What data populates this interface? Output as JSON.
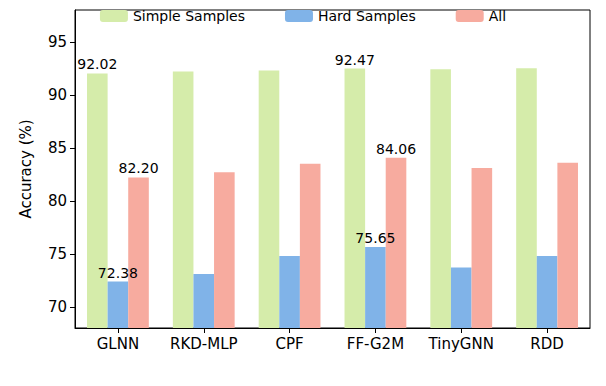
{
  "chart_data": {
    "type": "bar",
    "y_label": "Accuracy (%)",
    "categories": [
      "GLNN",
      "RKD-MLP",
      "CPF",
      "FF-G2M",
      "TinyGNN",
      "RDD"
    ],
    "series": [
      {
        "name": "Simple Samples",
        "color": "#d5ecaa",
        "values": [
          92.02,
          92.2,
          92.3,
          92.47,
          92.4,
          92.5
        ],
        "value_labels": [
          "92.02",
          null,
          null,
          "92.47",
          null,
          null
        ]
      },
      {
        "name": "Hard Samples",
        "color": "#80b3e8",
        "values": [
          72.38,
          73.1,
          74.8,
          75.65,
          73.7,
          74.8
        ],
        "value_labels": [
          "72.38",
          null,
          null,
          "75.65",
          null,
          null
        ]
      },
      {
        "name": "All",
        "color": "#f7ab9f",
        "values": [
          82.2,
          82.7,
          83.5,
          84.06,
          83.1,
          83.6
        ],
        "value_labels": [
          "82.20",
          null,
          null,
          "84.06",
          null,
          null
        ]
      }
    ],
    "ylim": [
      68,
      98
    ],
    "yticks": [
      70,
      75,
      80,
      85,
      90,
      95
    ],
    "grid": false,
    "legend": "top",
    "data_labels": true
  }
}
